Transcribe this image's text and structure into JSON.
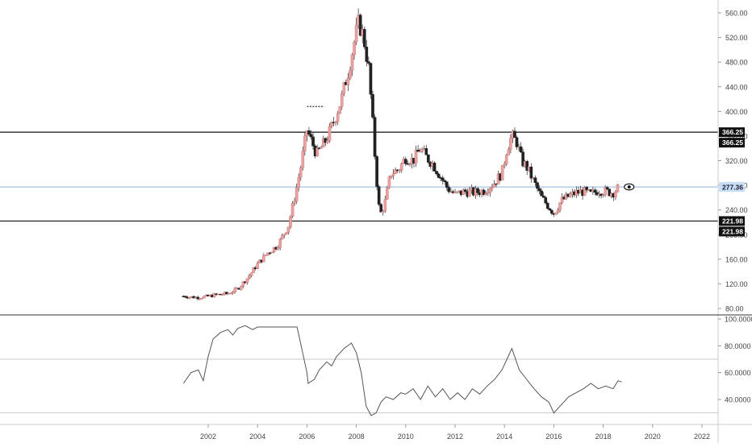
{
  "colors": {
    "background": "#ffffff",
    "candle_up": "#e8a0a0",
    "candle_down": "#222222",
    "wick": "#444444",
    "hline": "#111111",
    "last_price_line": "#8fb3e3",
    "last_price_label_bg": "#c7dcf5",
    "level_label_bg": "#111111",
    "oscillator_line": "#555555",
    "grid_dotted": "#c8c8c8",
    "axis_text": "#444444",
    "separator": "#333333"
  },
  "chart_data": [
    {
      "type": "candlestick",
      "title": "",
      "y_axis_side": "right",
      "ylim": [
        75,
        566
      ],
      "xlim": [
        2000.0,
        2022.2
      ],
      "y_ticks": [
        80,
        120,
        160,
        200,
        240,
        280,
        320,
        360,
        400,
        440,
        480,
        520,
        560
      ],
      "y_tick_labels": [
        "80.00",
        "120.00",
        "160.00",
        "200.00",
        "240.00",
        "280.00",
        "320.00",
        "360.00",
        "400.00",
        "440.00",
        "480.00",
        "520.00",
        "560.00"
      ],
      "horizontal_levels": [
        {
          "value": 366.25,
          "labels": [
            "366.25",
            "366.25"
          ]
        },
        {
          "value": 221.98,
          "labels": [
            "221.98",
            "221.98"
          ]
        }
      ],
      "last_price": {
        "value": 277.36,
        "label": "277.36",
        "icon": "eye-icon"
      },
      "x_label_dates": [
        2001.0,
        2001.5,
        2001.9,
        2002.3,
        2002.8,
        2003.2,
        2003.6,
        2004.0,
        2004.4,
        2004.8,
        2005.0,
        2005.25,
        2005.5,
        2005.75,
        2006.0,
        2006.4,
        2006.8,
        2007.1,
        2007.4,
        2007.7,
        2007.9,
        2008.1,
        2008.3,
        2008.5,
        2008.65,
        2008.8,
        2008.95,
        2009.15,
        2009.4,
        2009.7,
        2010.0,
        2010.3,
        2010.6,
        2010.85,
        2011.1,
        2011.4,
        2011.7,
        2012.0,
        2012.4,
        2012.8,
        2013.2,
        2013.6,
        2013.9,
        2014.1,
        2014.3,
        2014.5,
        2014.7,
        2014.9,
        2015.2,
        2015.5,
        2015.8,
        2016.0,
        2016.3,
        2016.6,
        2016.9,
        2017.2,
        2017.5,
        2017.8,
        2018.1,
        2018.4,
        2018.65
      ],
      "closes": [
        100,
        98,
        99,
        102,
        104,
        112,
        130,
        152,
        170,
        182,
        196,
        215,
        260,
        310,
        370,
        330,
        355,
        385,
        420,
        470,
        510,
        545,
        520,
        470,
        390,
        300,
        230,
        250,
        300,
        305,
        325,
        320,
        340,
        325,
        315,
        295,
        275,
        265,
        270,
        268,
        272,
        285,
        300,
        340,
        360,
        350,
        320,
        310,
        285,
        260,
        245,
        235,
        255,
        262,
        268,
        270,
        265,
        272,
        270,
        268,
        277.36
      ],
      "marker_line": {
        "from": 2006.0,
        "to": 2006.7,
        "value": 408
      }
    },
    {
      "type": "line",
      "title": "",
      "y_axis_side": "right",
      "ylim": [
        25,
        100
      ],
      "y_ticks": [
        40,
        60,
        80,
        100
      ],
      "y_tick_labels": [
        "40.0000",
        "60.0000",
        "80.0000",
        "100.0000"
      ],
      "reference_levels": [
        30,
        70
      ],
      "x": [
        2001.0,
        2001.3,
        2001.6,
        2001.8,
        2002.0,
        2002.2,
        2002.5,
        2002.8,
        2003.0,
        2003.2,
        2003.5,
        2003.8,
        2004.0,
        2004.3,
        2004.6,
        2005.0,
        2005.3,
        2005.6,
        2006.0,
        2006.05,
        2006.3,
        2006.5,
        2006.8,
        2007.0,
        2007.2,
        2007.5,
        2007.8,
        2008.0,
        2008.2,
        2008.4,
        2008.6,
        2008.8,
        2009.0,
        2009.2,
        2009.5,
        2009.8,
        2010.0,
        2010.3,
        2010.6,
        2010.9,
        2011.2,
        2011.5,
        2011.8,
        2012.1,
        2012.4,
        2012.7,
        2013.0,
        2013.3,
        2013.6,
        2013.9,
        2014.1,
        2014.3,
        2014.6,
        2014.9,
        2015.2,
        2015.5,
        2015.8,
        2016.0,
        2016.3,
        2016.6,
        2016.9,
        2017.2,
        2017.5,
        2017.8,
        2018.1,
        2018.4,
        2018.6,
        2018.75
      ],
      "y": [
        52,
        60,
        62,
        54,
        72,
        85,
        90,
        92,
        88,
        93,
        95,
        92,
        94,
        94,
        94,
        94,
        94,
        94,
        60,
        52,
        55,
        62,
        68,
        65,
        72,
        78,
        82,
        75,
        60,
        35,
        28,
        30,
        38,
        42,
        40,
        45,
        44,
        48,
        40,
        50,
        42,
        48,
        40,
        45,
        40,
        48,
        44,
        50,
        55,
        62,
        70,
        78,
        62,
        55,
        48,
        42,
        38,
        30,
        36,
        42,
        45,
        48,
        52,
        48,
        50,
        48,
        54,
        53
      ]
    }
  ],
  "x_axis": {
    "range": [
      2000.0,
      2022.2
    ],
    "ticks": [
      2002,
      2004,
      2006,
      2008,
      2010,
      2012,
      2014,
      2016,
      2018,
      2020,
      2022
    ],
    "tick_labels": [
      "2002",
      "2004",
      "2006",
      "2008",
      "2010",
      "2012",
      "2014",
      "2016",
      "2018",
      "2020",
      "2022"
    ]
  }
}
